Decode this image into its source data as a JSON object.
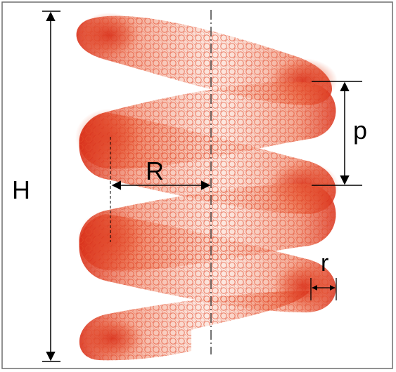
{
  "labels": {
    "height": "H",
    "major_radius": "R",
    "pitch": "p",
    "minor_radius": "r"
  },
  "colors": {
    "helix_light": "#f7c1ad",
    "helix_mid": "#ec6a45",
    "helix_dark": "#d9301a",
    "mesh_line": "#e24a2a",
    "annotation": "#000000",
    "frame": "#6e6e6e",
    "background": "#ffffff"
  }
}
